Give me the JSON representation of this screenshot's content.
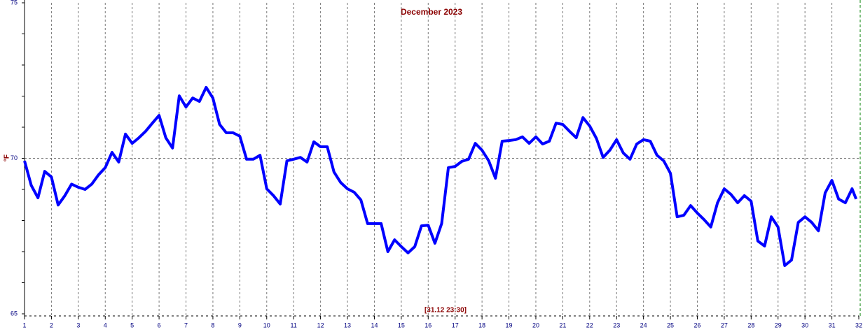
{
  "chart_data": {
    "type": "line",
    "title": "December 2023",
    "y_label": "°F",
    "annotation": "[31.12 23:30]",
    "xlim": [
      1,
      32
    ],
    "xticks": [
      1,
      2,
      3,
      4,
      5,
      6,
      7,
      8,
      9,
      10,
      11,
      12,
      13,
      14,
      15,
      16,
      17,
      18,
      19,
      20,
      21,
      22,
      23,
      24,
      25,
      26,
      27,
      28,
      29,
      30,
      31,
      32
    ],
    "ylim": [
      65,
      75
    ],
    "yticks": [
      65,
      70,
      75
    ],
    "grid": true,
    "series": [
      {
        "color": "#0000ff",
        "x": [
          1,
          1.25,
          1.5,
          1.75,
          2,
          2.25,
          2.5,
          2.75,
          3,
          3.25,
          3.5,
          3.75,
          4,
          4.25,
          4.5,
          4.75,
          5,
          5.25,
          5.5,
          5.75,
          6,
          6.25,
          6.5,
          6.75,
          7,
          7.25,
          7.5,
          7.75,
          8,
          8.25,
          8.5,
          8.75,
          9,
          9.25,
          9.5,
          9.75,
          10,
          10.25,
          10.5,
          10.75,
          11,
          11.25,
          11.5,
          11.75,
          12,
          12.25,
          12.5,
          12.75,
          13,
          13.25,
          13.5,
          13.75,
          14,
          14.25,
          14.5,
          14.75,
          15,
          15.25,
          15.5,
          15.75,
          16,
          16.25,
          16.5,
          16.75,
          17,
          17.25,
          17.5,
          17.75,
          18,
          18.25,
          18.5,
          18.75,
          19,
          19.25,
          19.5,
          19.75,
          20,
          20.25,
          20.5,
          20.75,
          21,
          21.25,
          21.5,
          21.75,
          22,
          22.25,
          22.5,
          22.75,
          23,
          23.25,
          23.5,
          23.75,
          24,
          24.25,
          24.5,
          24.75,
          25,
          25.25,
          25.5,
          25.75,
          26,
          26.25,
          26.5,
          26.75,
          27,
          27.25,
          27.5,
          27.75,
          28,
          28.25,
          28.5,
          28.75,
          29,
          29.25,
          29.5,
          29.75,
          30,
          30.25,
          30.5,
          30.75,
          31,
          31.25,
          31.5,
          31.75,
          31.9
        ],
        "values": [
          69.92,
          69.13,
          68.73,
          69.58,
          69.4,
          68.5,
          68.8,
          69.17,
          69.07,
          69.0,
          69.17,
          69.47,
          69.7,
          70.19,
          69.88,
          70.78,
          70.48,
          70.66,
          70.87,
          71.13,
          71.38,
          70.66,
          70.33,
          72.01,
          71.65,
          71.94,
          71.83,
          72.28,
          71.94,
          71.09,
          70.82,
          70.82,
          70.71,
          69.97,
          69.97,
          70.1,
          69.02,
          68.8,
          68.53,
          69.92,
          69.97,
          70.03,
          69.88,
          70.53,
          70.37,
          70.37,
          69.56,
          69.22,
          69.02,
          68.91,
          68.66,
          67.9,
          67.9,
          67.9,
          67.0,
          67.38,
          67.16,
          66.96,
          67.16,
          67.83,
          67.85,
          67.27,
          67.9,
          69.7,
          69.74,
          69.9,
          69.97,
          70.48,
          70.26,
          69.92,
          69.36,
          70.55,
          70.57,
          70.6,
          70.69,
          70.48,
          70.69,
          70.46,
          70.55,
          71.13,
          71.09,
          70.87,
          70.66,
          71.31,
          71.04,
          70.64,
          70.03,
          70.26,
          70.6,
          70.17,
          69.97,
          70.46,
          70.6,
          70.55,
          70.1,
          69.92,
          69.52,
          68.12,
          68.17,
          68.48,
          68.24,
          68.03,
          67.79,
          68.57,
          69.02,
          68.84,
          68.57,
          68.8,
          68.62,
          67.34,
          67.18,
          68.12,
          67.79,
          66.55,
          66.73,
          67.94,
          68.12,
          67.94,
          67.67,
          68.89,
          69.29,
          68.69,
          68.57,
          69.02,
          68.69
        ]
      }
    ]
  }
}
